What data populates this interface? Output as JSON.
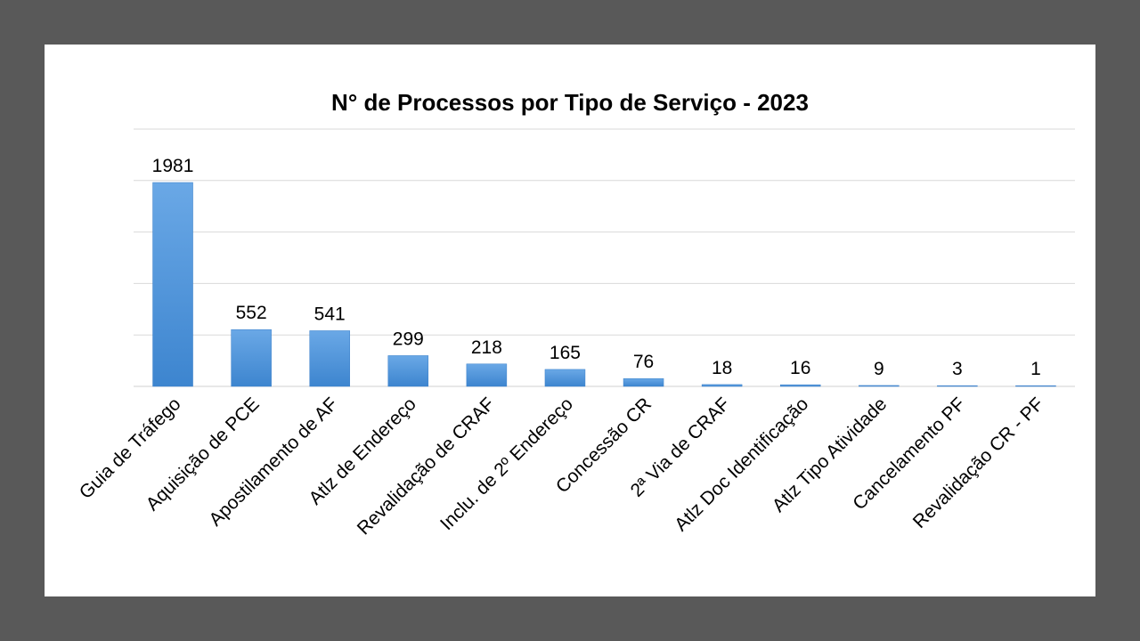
{
  "chart_data": {
    "type": "bar",
    "title": "N° de Processos por Tipo de Serviço - 2023",
    "xlabel": "",
    "ylabel": "",
    "categories": [
      "Guia de Tráfego",
      "Aquisição de PCE",
      "Apostilamento de AF",
      "Atlz de Endereço",
      "Revalidação de CRAF",
      "Inclu. de 2º Endereço",
      "Concessão CR",
      "2ª Via de CRAF",
      "Atlz Doc Identificação",
      "Atlz Tipo Atividade",
      "Cancelamento PF",
      "Revalidação CR - PF"
    ],
    "values": [
      1981,
      552,
      541,
      299,
      218,
      165,
      76,
      18,
      16,
      9,
      3,
      1
    ],
    "data_labels": [
      "1981",
      "552",
      "541",
      "299",
      "218",
      "165",
      "76",
      "18",
      "16",
      "9",
      "3",
      "1"
    ],
    "ylim": [
      0,
      2500
    ],
    "grid": true,
    "legend": "none",
    "bar_color": "#4a90d9"
  }
}
